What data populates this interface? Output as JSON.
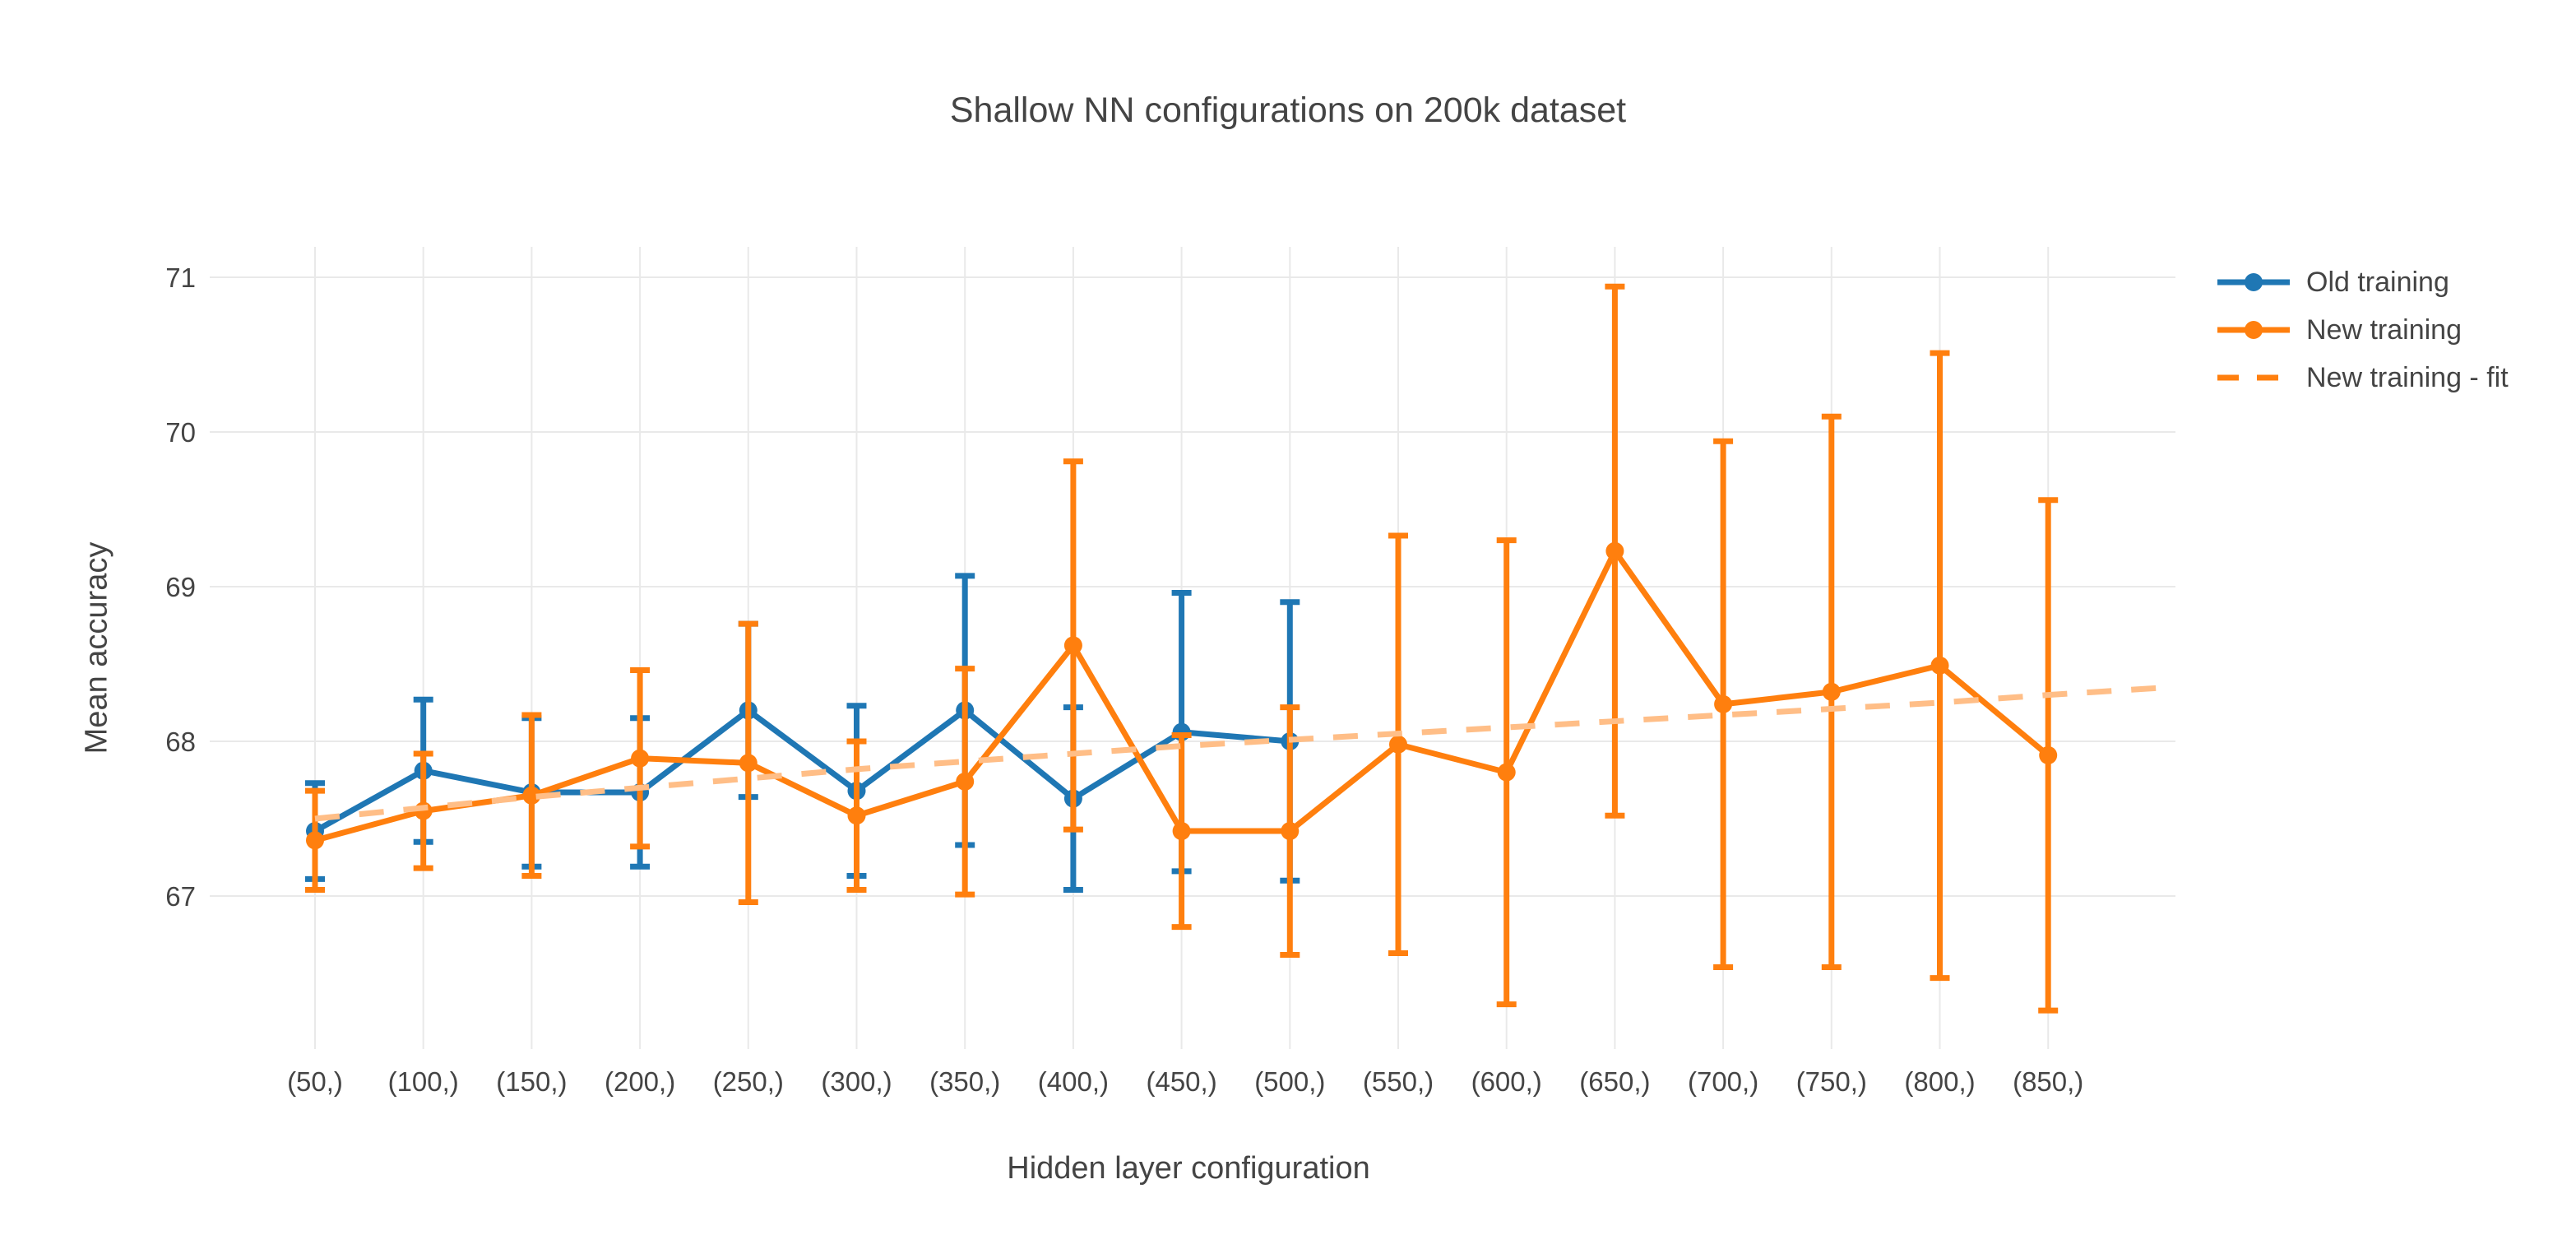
{
  "title": "Shallow NN configurations on 200k dataset",
  "axes": {
    "x_title": "Hidden layer configuration",
    "y_title": "Mean accuracy",
    "y_tick_labels": [
      "67",
      "68",
      "69",
      "70",
      "71"
    ]
  },
  "colors": {
    "old_training": "#1f77b4",
    "new_training": "#ff7f0e",
    "fit_line": "#ffbe87",
    "grid": "#e9e9e9",
    "text": "#444444",
    "background": "#ffffff"
  },
  "legend": {
    "items": [
      {
        "label": "Old training",
        "swatch": "solid-line-with-marker",
        "color": "#1f77b4"
      },
      {
        "label": "New training",
        "swatch": "solid-line-with-marker",
        "color": "#ff7f0e"
      },
      {
        "label": "New training - fit",
        "swatch": "dashed-line",
        "color": "#ffbe87"
      }
    ]
  },
  "chart_data": {
    "type": "line",
    "title": "Shallow NN configurations on 200k dataset",
    "xlabel": "Hidden layer configuration",
    "ylabel": "Mean accuracy",
    "categories": [
      "(50,)",
      "(100,)",
      "(150,)",
      "(200,)",
      "(250,)",
      "(300,)",
      "(350,)",
      "(400,)",
      "(450,)",
      "(500,)",
      "(550,)",
      "(600,)",
      "(650,)",
      "(700,)",
      "(750,)",
      "(800,)",
      "(850,)"
    ],
    "yticks": [
      67,
      68,
      69,
      70,
      71
    ],
    "ylim": [
      66.0,
      71.2
    ],
    "grid": true,
    "legend_position": "right",
    "series": [
      {
        "name": "Old training",
        "style": "line+markers+errorbars",
        "color": "#1f77b4",
        "values": [
          67.42,
          67.81,
          67.67,
          67.67,
          68.2,
          67.68,
          68.2,
          67.63,
          68.06,
          68.0
        ],
        "error": [
          0.31,
          0.46,
          0.48,
          0.48,
          0.56,
          0.55,
          0.87,
          0.59,
          0.9,
          0.9
        ]
      },
      {
        "name": "New training",
        "style": "line+markers+errorbars",
        "color": "#ff7f0e",
        "values": [
          67.36,
          67.55,
          67.65,
          67.89,
          67.86,
          67.52,
          67.74,
          68.62,
          67.42,
          67.42,
          67.98,
          67.8,
          69.23,
          68.24,
          68.32,
          68.49,
          67.91
        ],
        "error": [
          0.32,
          0.37,
          0.52,
          0.57,
          0.9,
          0.48,
          0.73,
          1.19,
          0.62,
          0.8,
          1.35,
          1.5,
          1.71,
          1.7,
          1.78,
          2.02,
          1.65
        ]
      },
      {
        "name": "New training - fit",
        "style": "dashed-line",
        "color": "#ffbe87",
        "values": [
          67.5,
          67.57,
          67.64,
          67.7,
          67.76,
          67.82,
          67.87,
          67.92,
          67.97,
          68.01,
          68.05,
          68.09,
          68.13,
          68.17,
          68.21,
          68.25,
          68.3
        ],
        "extends_to_right_edge": true,
        "right_edge_value": 68.35
      }
    ]
  }
}
